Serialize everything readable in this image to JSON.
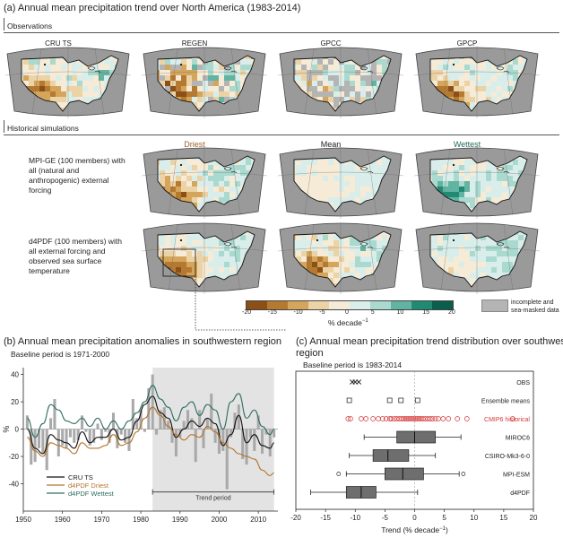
{
  "panel_a": {
    "title": "(a) Annual mean precipitation trend over North America (1983-2014)",
    "observations_label": "Observations",
    "obs_maps": [
      "CRU TS",
      "REGEN",
      "GPCC",
      "GPCP"
    ],
    "historical_label": "Historical simulations",
    "col_headers": {
      "driest": "Driest",
      "mean": "Mean",
      "wettest": "Wettest"
    },
    "col_colors": {
      "driest": "#a0622a",
      "mean": "#222222",
      "wettest": "#1f6b5a"
    },
    "rows": [
      {
        "desc": "MPI-GE (100 members) with all (natural and anthropogenic) external forcing"
      },
      {
        "desc": "d4PDF (100 members) with all external forcing and observed sea surface temperature"
      }
    ],
    "colorbar": {
      "ticks": [
        "-20",
        "-15",
        "-10",
        "-5",
        "0",
        "5",
        "10",
        "15",
        "20"
      ],
      "unit": "% decade",
      "unit_sup": "−1",
      "colors": [
        "#8c5016",
        "#b57a32",
        "#d6a55c",
        "#ecd3a6",
        "#f6ebd7",
        "#d9eeea",
        "#a9d9cf",
        "#62b4a2",
        "#218a73",
        "#0b5d4c"
      ],
      "masked_label_1": "incomplete and",
      "masked_label_2": "sea-masked data",
      "masked_color": "#b4b4b4"
    }
  },
  "panel_b": {
    "title": "(b) Annual mean precipitation anomalies in southwestern region",
    "subtitle": "Baseline period is 1971-2000",
    "ylabel": "%",
    "trend_label": "Trend period",
    "legend": [
      {
        "name": "CRU TS",
        "color": "#111111"
      },
      {
        "name": "d4PDF Driest",
        "color": "#b5742c"
      },
      {
        "name": "d4PDF Wettest",
        "color": "#2d6e62"
      }
    ]
  },
  "panel_c": {
    "title": "(c) Annual mean precipitation trend distribution over southwestern",
    "title2": "region",
    "subtitle": "Baseline period is 1983-2014",
    "xlabel": "Trend (% decade",
    "xlabel_sup": "−1",
    "xlabel_close": ")",
    "rows": [
      "OBS",
      "Ensemble means",
      "CMIP6 historical",
      "MIROC6",
      "CSIRO-Mk3-6-0",
      "MPI-ESM",
      "d4PDF"
    ],
    "cmip_color": "#d43a3a"
  },
  "chart_data": [
    {
      "type": "bar",
      "id": "precip_anomalies_sw",
      "title": "(b) Annual mean precipitation anomalies in southwestern region",
      "xlabel": "",
      "ylabel": "%",
      "xlim": [
        1950,
        2015
      ],
      "ylim": [
        -60,
        45
      ],
      "xticks": [
        1950,
        1960,
        1970,
        1980,
        1990,
        2000,
        2010
      ],
      "yticks": [
        -40,
        -20,
        0,
        20,
        40
      ],
      "shaded_period": [
        1983,
        2014
      ],
      "bars_series": "CRU TS",
      "x": [
        1951,
        1952,
        1953,
        1954,
        1955,
        1956,
        1957,
        1958,
        1959,
        1960,
        1961,
        1962,
        1963,
        1964,
        1965,
        1966,
        1967,
        1968,
        1969,
        1970,
        1971,
        1972,
        1973,
        1974,
        1975,
        1976,
        1977,
        1978,
        1979,
        1980,
        1981,
        1982,
        1983,
        1984,
        1985,
        1986,
        1987,
        1988,
        1989,
        1990,
        1991,
        1992,
        1993,
        1994,
        1995,
        1996,
        1997,
        1998,
        1999,
        2000,
        2001,
        2002,
        2003,
        2004,
        2005,
        2006,
        2007,
        2008,
        2009,
        2010,
        2011,
        2012,
        2013,
        2014
      ],
      "bar_values": [
        10,
        -26,
        -24,
        -14,
        -18,
        -30,
        8,
        22,
        -20,
        -12,
        -14,
        -6,
        -10,
        -8,
        10,
        -2,
        -12,
        -10,
        4,
        -8,
        -2,
        -10,
        12,
        -14,
        -4,
        -10,
        -16,
        22,
        8,
        14,
        -2,
        30,
        40,
        -4,
        14,
        16,
        6,
        -10,
        -20,
        -6,
        6,
        14,
        8,
        -24,
        14,
        -14,
        8,
        26,
        -10,
        -18,
        -16,
        -44,
        -6,
        12,
        18,
        -22,
        -26,
        -6,
        -16,
        10,
        -18,
        -4,
        -20,
        -6
      ],
      "series": [
        {
          "name": "CRU TS",
          "x": [
            1951,
            1953,
            1955,
            1957,
            1959,
            1961,
            1963,
            1965,
            1967,
            1969,
            1971,
            1973,
            1975,
            1977,
            1979,
            1981,
            1983,
            1985,
            1987,
            1989,
            1991,
            1993,
            1995,
            1997,
            1999,
            2001,
            2003,
            2005,
            2007,
            2009,
            2011,
            2013,
            2014
          ],
          "values": [
            0,
            -14,
            -18,
            -4,
            -8,
            -10,
            -14,
            -2,
            -10,
            -6,
            -6,
            0,
            -8,
            -6,
            6,
            18,
            24,
            12,
            8,
            -6,
            0,
            6,
            2,
            8,
            4,
            -12,
            -4,
            10,
            -10,
            -4,
            -12,
            -14,
            -10
          ]
        },
        {
          "name": "d4PDF Driest",
          "x": [
            1951,
            1953,
            1955,
            1957,
            1959,
            1961,
            1963,
            1965,
            1967,
            1969,
            1971,
            1973,
            1975,
            1977,
            1979,
            1981,
            1983,
            1985,
            1987,
            1989,
            1991,
            1993,
            1995,
            1997,
            1999,
            2001,
            2003,
            2005,
            2007,
            2009,
            2011,
            2013,
            2014
          ],
          "values": [
            -6,
            -16,
            -20,
            -10,
            -12,
            -14,
            -18,
            -10,
            -14,
            -14,
            -12,
            -4,
            -12,
            -10,
            -2,
            8,
            16,
            10,
            2,
            -4,
            -8,
            -4,
            -6,
            2,
            -2,
            -10,
            -14,
            -18,
            -20,
            -22,
            -30,
            -34,
            -32
          ]
        },
        {
          "name": "d4PDF Wettest",
          "x": [
            1951,
            1953,
            1955,
            1957,
            1959,
            1961,
            1963,
            1965,
            1967,
            1969,
            1971,
            1973,
            1975,
            1977,
            1979,
            1981,
            1983,
            1985,
            1987,
            1989,
            1991,
            1993,
            1995,
            1997,
            1999,
            2001,
            2003,
            2005,
            2007,
            2009,
            2011,
            2013,
            2014
          ],
          "values": [
            8,
            -6,
            4,
            18,
            14,
            6,
            4,
            8,
            2,
            8,
            0,
            6,
            0,
            6,
            12,
            20,
            32,
            22,
            16,
            6,
            16,
            20,
            10,
            18,
            14,
            0,
            20,
            26,
            8,
            14,
            2,
            -4,
            0
          ]
        }
      ]
    },
    {
      "type": "box",
      "id": "trend_distribution_sw",
      "title": "(c) Annual mean precipitation trend distribution over southwestern region",
      "xlabel": "Trend (% decade−1)",
      "xlim": [
        -20,
        20
      ],
      "xticks": [
        -20,
        -15,
        -10,
        -5,
        0,
        5,
        10,
        15,
        20
      ],
      "obs_markers": [
        -10.5,
        -10.0,
        -9.4
      ],
      "ensemble_means": [
        -11.0,
        -4.2,
        -2.3,
        0.5
      ],
      "cmip6_points": [
        -11.2,
        -10.8,
        -9.0,
        -8.2,
        -7.0,
        -6.1,
        -5.4,
        -4.8,
        -4.2,
        -3.9,
        -3.4,
        -3.0,
        -2.6,
        -2.2,
        -1.9,
        -1.6,
        -1.3,
        -1.0,
        -0.7,
        -0.4,
        -0.1,
        0.2,
        0.5,
        0.8,
        1.1,
        1.4,
        1.8,
        2.2,
        2.6,
        3.0,
        3.5,
        4.0,
        4.8,
        5.7,
        7.2,
        8.8,
        16.5
      ],
      "boxes": [
        {
          "name": "MIROC6",
          "whisker_low": -8.5,
          "q1": -3.0,
          "median": 0.0,
          "q3": 3.5,
          "whisker_high": 7.8
        },
        {
          "name": "CSIRO-Mk3-6-0",
          "whisker_low": -11.0,
          "q1": -7.0,
          "median": -4.5,
          "q3": -1.0,
          "whisker_high": 3.5
        },
        {
          "name": "MPI-ESM",
          "whisker_low": -11.5,
          "q1": -5.0,
          "median": -2.0,
          "q3": 1.5,
          "whisker_high": 7.5,
          "outliers": [
            -12.8,
            8.2
          ]
        },
        {
          "name": "d4PDF",
          "whisker_low": -17.5,
          "q1": -11.5,
          "median": -9.0,
          "q3": -6.5,
          "whisker_high": 0.5
        }
      ]
    }
  ]
}
